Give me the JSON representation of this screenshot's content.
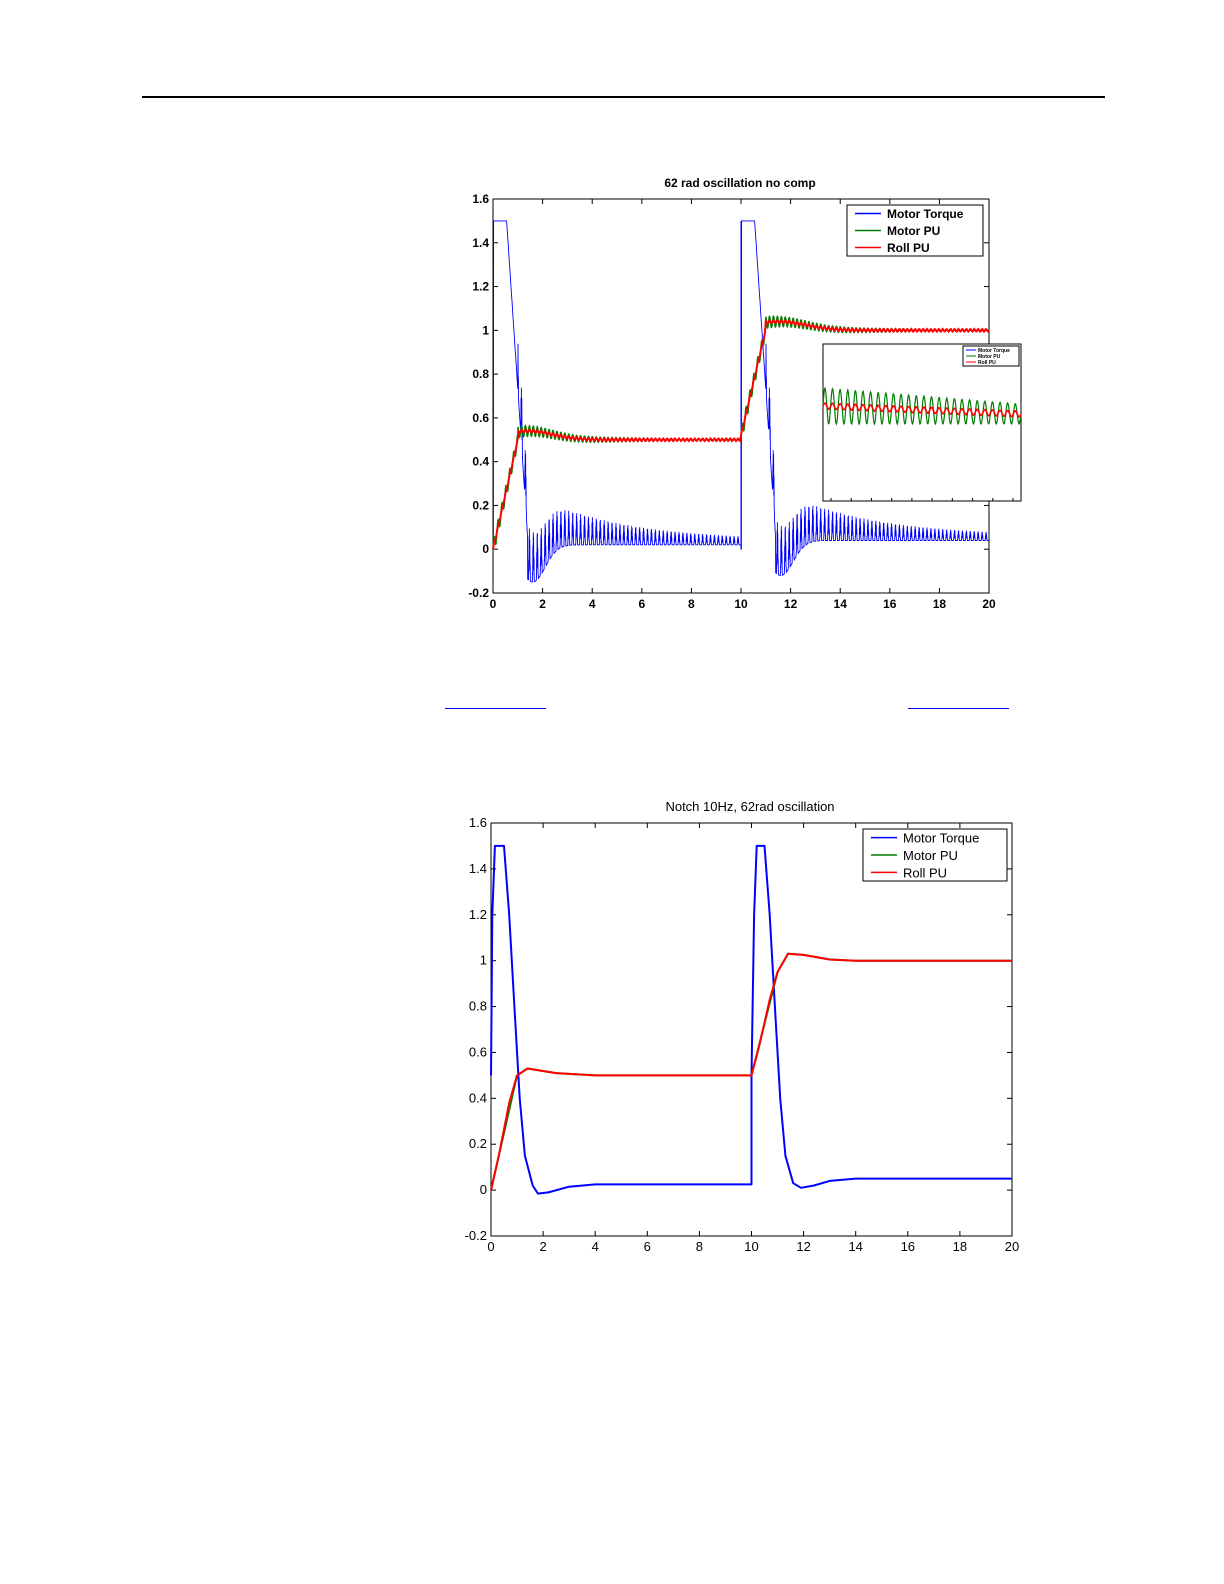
{
  "colors": {
    "motor_torque": "#0000ff",
    "motor_pu": "#007f00",
    "roll_pu": "#ff0000",
    "axes": "#000000"
  },
  "chart_data": [
    {
      "type": "line",
      "title": "62 rad oscillation no comp",
      "xlabel": "",
      "ylabel": "",
      "xlim": [
        0,
        20
      ],
      "ylim": [
        -0.2,
        1.6
      ],
      "x_ticks": [
        "0",
        "2",
        "4",
        "6",
        "8",
        "10",
        "12",
        "14",
        "16",
        "18",
        "20"
      ],
      "y_ticks": [
        "-0.2",
        "0",
        "0.2",
        "0.4",
        "0.6",
        "0.8",
        "1",
        "1.2",
        "1.4",
        "1.6"
      ],
      "grid": false,
      "legend": "top-right",
      "series": [
        {
          "name": "Motor Torque",
          "description": "step to 1.5 saturation at t=0 and t=10, decays to about 0.02-0.05 with heavy oscillation"
        },
        {
          "name": "Motor PU",
          "description": "ramps to 0.5 then 1.0, oscillating"
        },
        {
          "name": "Roll PU",
          "description": "ramps to 0.5 then 1.0"
        }
      ],
      "key_points": {
        "torque_peak": 1.5,
        "torque_min_first": -0.15,
        "torque_min_second": -0.12,
        "torque_settle_first": 0.02,
        "torque_settle_second": 0.04,
        "pu_level_first": 0.5,
        "pu_level_second": 1.0,
        "pu_overshoot_first": 0.54,
        "pu_overshoot_second": 1.04
      },
      "inset": {
        "description": "zoomed view around Motor PU / Roll PU near 1.0",
        "legend": [
          "Motor Torque",
          "Motor PU",
          "Roll PU"
        ]
      }
    },
    {
      "type": "line",
      "title": "Notch 10Hz, 62rad oscillation",
      "xlabel": "",
      "ylabel": "",
      "xlim": [
        0,
        20
      ],
      "ylim": [
        -0.2,
        1.6
      ],
      "x_ticks": [
        "0",
        "2",
        "4",
        "6",
        "8",
        "10",
        "12",
        "14",
        "16",
        "18",
        "20"
      ],
      "y_ticks": [
        "-0.2",
        "0",
        "0.2",
        "0.4",
        "0.6",
        "0.8",
        "1",
        "1.2",
        "1.4",
        "1.6"
      ],
      "grid": false,
      "legend": "top-right",
      "series": [
        {
          "name": "Motor Torque",
          "points": [
            [
              0,
              0.5
            ],
            [
              0.05,
              1.2
            ],
            [
              0.15,
              1.5
            ],
            [
              0.5,
              1.5
            ],
            [
              0.7,
              1.2
            ],
            [
              0.9,
              0.8
            ],
            [
              1.1,
              0.4
            ],
            [
              1.3,
              0.15
            ],
            [
              1.6,
              0.02
            ],
            [
              1.8,
              -0.015
            ],
            [
              2.2,
              -0.01
            ],
            [
              3,
              0.015
            ],
            [
              4,
              0.025
            ],
            [
              10,
              0.025
            ],
            [
              10,
              0.5
            ],
            [
              10.1,
              1.2
            ],
            [
              10.2,
              1.5
            ],
            [
              10.5,
              1.5
            ],
            [
              10.7,
              1.2
            ],
            [
              10.9,
              0.8
            ],
            [
              11.1,
              0.4
            ],
            [
              11.3,
              0.15
            ],
            [
              11.6,
              0.03
            ],
            [
              11.9,
              0.01
            ],
            [
              12.4,
              0.02
            ],
            [
              13,
              0.04
            ],
            [
              14,
              0.05
            ],
            [
              20,
              0.05
            ]
          ]
        },
        {
          "name": "Motor PU",
          "points": [
            [
              0,
              0
            ],
            [
              1,
              0.5
            ],
            [
              1.4,
              0.53
            ],
            [
              2.5,
              0.51
            ],
            [
              4,
              0.5
            ],
            [
              10,
              0.5
            ],
            [
              10,
              0.5
            ],
            [
              11,
              0.95
            ],
            [
              11.4,
              1.03
            ],
            [
              12,
              1.025
            ],
            [
              13,
              1.005
            ],
            [
              14,
              1.0
            ],
            [
              20,
              1.0
            ]
          ]
        },
        {
          "name": "Roll PU",
          "points": [
            [
              0,
              0
            ],
            [
              0.3,
              0.15
            ],
            [
              0.7,
              0.38
            ],
            [
              1,
              0.5
            ],
            [
              1.4,
              0.53
            ],
            [
              2.5,
              0.51
            ],
            [
              4,
              0.5
            ],
            [
              10,
              0.5
            ],
            [
              10,
              0.5
            ],
            [
              10.3,
              0.63
            ],
            [
              10.7,
              0.83
            ],
            [
              11,
              0.95
            ],
            [
              11.4,
              1.03
            ],
            [
              12,
              1.025
            ],
            [
              13,
              1.005
            ],
            [
              14,
              1.0
            ],
            [
              20,
              1.0
            ]
          ]
        }
      ]
    }
  ]
}
